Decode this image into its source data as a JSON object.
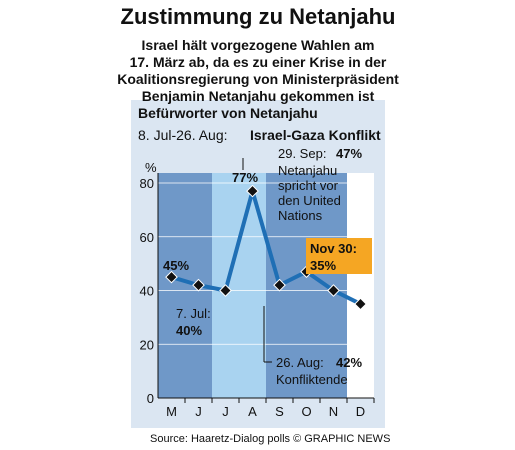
{
  "chart_data": {
    "type": "line",
    "title": "Zustimmung zu Netanjahu",
    "subtitle": [
      "Israel hält vorgezogene Wahlen am",
      "17. März ab, da es zu einer Krise in der",
      "Koalitionsregierung von Ministerpräsident",
      "Benjamin Netanjahu gekommen ist"
    ],
    "chart_title": "Befürworter von Netanjahu",
    "period_label": "8. Jul-26. Aug:",
    "period_name": "Israel-Gaza Konflikt",
    "y_unit": "%",
    "categories": [
      "M",
      "J",
      "J",
      "A",
      "S",
      "O",
      "N",
      "D"
    ],
    "series": [
      {
        "name": "Befürworter",
        "color": "#1f6fb5",
        "values": [
          45,
          42,
          40,
          77,
          42,
          47,
          40,
          35
        ]
      }
    ],
    "ylim": [
      0,
      80
    ],
    "yticks": [
      0,
      20,
      40,
      60,
      80
    ],
    "annotations": {
      "start": "45%",
      "jul_date": "7. Jul:",
      "jul_value": "40%",
      "peak": "77%",
      "sep_date": "29. Sep:",
      "sep_value": "47%",
      "sep_text": [
        "Netanjahu",
        "spricht vor",
        "den United",
        "Nations"
      ],
      "aug_date": "26. Aug:",
      "aug_value": "42%",
      "aug_text": "Konfliktende",
      "nov_date": "Nov 30:",
      "nov_value": "35%"
    },
    "source": "Source: Haaretz-Dialog polls  © GRAPHIC NEWS"
  }
}
